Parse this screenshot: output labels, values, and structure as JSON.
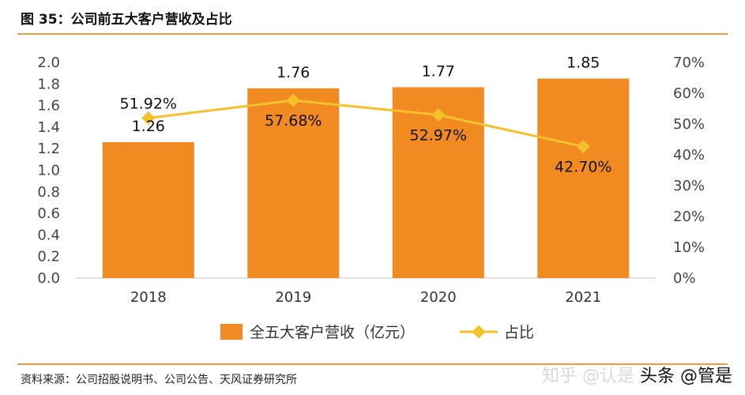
{
  "title": "图 35：公司前五大客户营收及占比",
  "source": "资料来源：公司招股说明书、公司公告、天风证券研究所",
  "watermark": {
    "faint": "知乎 @认是",
    "main": "头条 @管是"
  },
  "colors": {
    "bar": "#f28a22",
    "line": "#f5c12b",
    "rule": "#d9a24a"
  },
  "chart_data": {
    "type": "bar+line",
    "categories": [
      "2018",
      "2019",
      "2020",
      "2021"
    ],
    "series": [
      {
        "name": "全五大客户营收（亿元）",
        "type": "bar",
        "axis": "left",
        "values": [
          1.26,
          1.76,
          1.77,
          1.85
        ],
        "labels": [
          "1.26",
          "1.76",
          "1.77",
          "1.85"
        ]
      },
      {
        "name": "占比",
        "type": "line",
        "axis": "right",
        "values": [
          51.92,
          57.68,
          52.97,
          42.7
        ],
        "labels": [
          "51.92%",
          "57.68%",
          "52.97%",
          "42.70%"
        ]
      }
    ],
    "y_left": {
      "min": 0,
      "max": 2.0,
      "step": 0.2,
      "ticks": [
        "0.0",
        "0.2",
        "0.4",
        "0.6",
        "0.8",
        "1.0",
        "1.2",
        "1.4",
        "1.6",
        "1.8",
        "2.0"
      ]
    },
    "y_right": {
      "min": 0,
      "max": 70,
      "step": 10,
      "ticks": [
        "0%",
        "10%",
        "20%",
        "30%",
        "40%",
        "50%",
        "60%",
        "70%"
      ]
    },
    "legend_position": "bottom",
    "grid": false
  }
}
